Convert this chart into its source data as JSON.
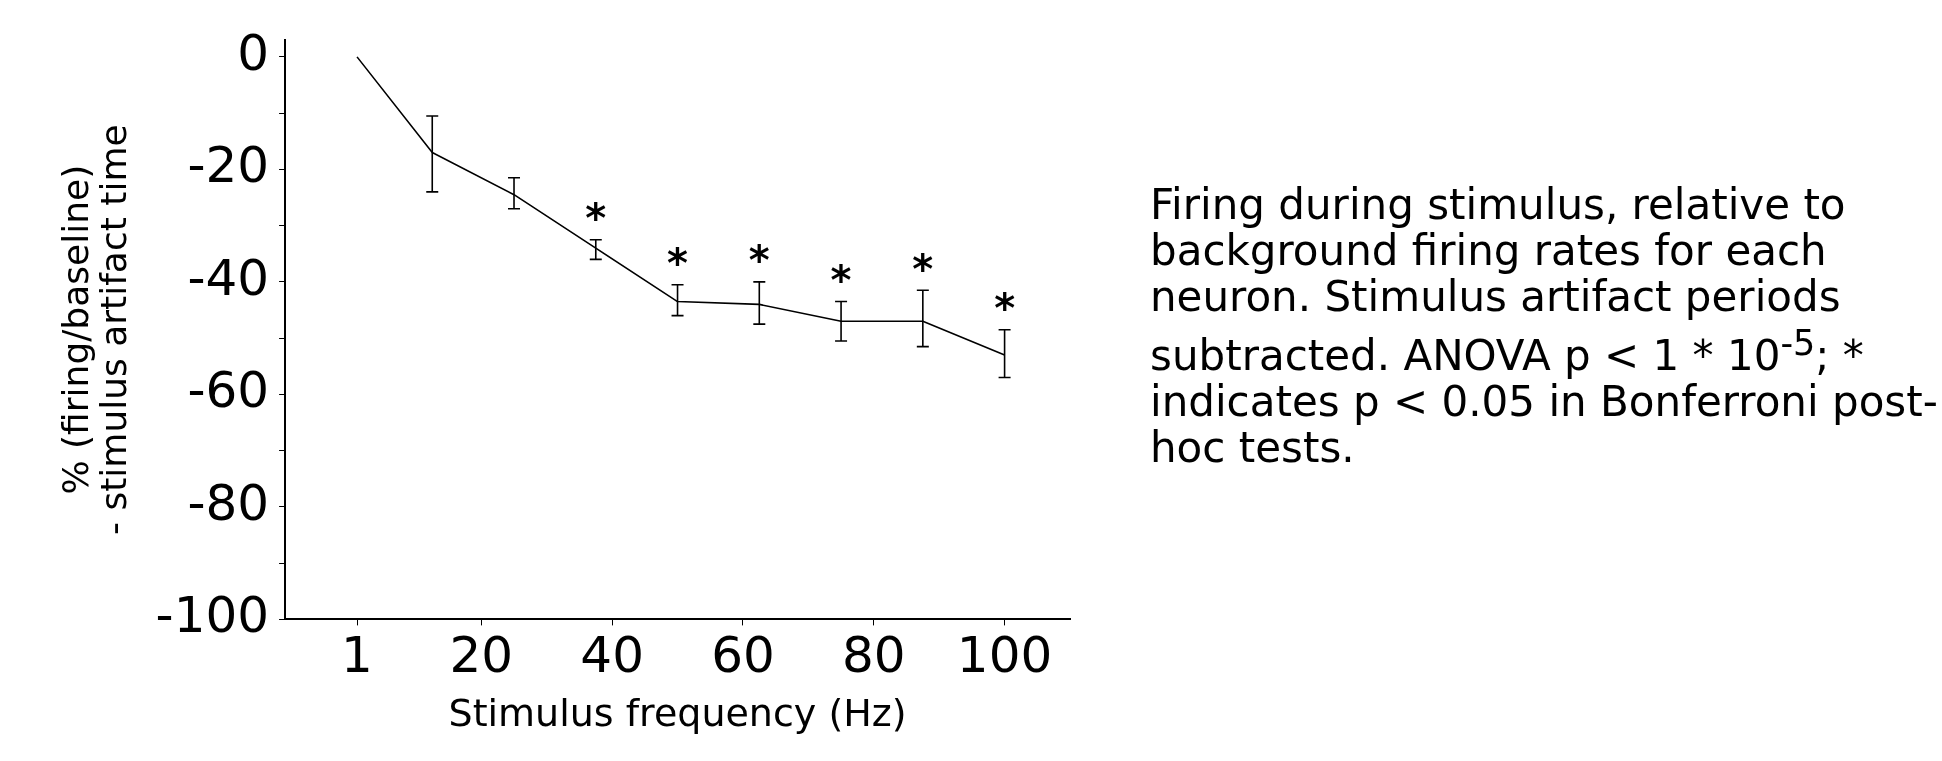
{
  "chart_data": {
    "type": "line",
    "xlabel": "Stimulus frequency (Hz)",
    "ylabel": "% (firing/baseline)\n- stimulus artifact time",
    "x": [
      1,
      12.5,
      25,
      37.5,
      50,
      62.5,
      75,
      87.5,
      100
    ],
    "series": [
      {
        "color": "#000000",
        "values": [
          0,
          -17,
          -24.5,
          -34,
          -43.5,
          -44,
          -47,
          -47,
          -53
        ],
        "errors": [
          null,
          [
            -24,
            -10.5
          ],
          [
            -27,
            -21.5
          ],
          [
            -36,
            -32.5
          ],
          [
            -46,
            -40.5
          ],
          [
            -47.5,
            -40
          ],
          [
            -50.5,
            -43.5
          ],
          [
            -51.5,
            -41.5
          ],
          [
            -57,
            -48.5
          ]
        ]
      }
    ],
    "xlim": [
      -10,
      110
    ],
    "xticks": [
      1,
      20,
      40,
      60,
      80,
      100
    ],
    "ylim": [
      -100,
      3
    ],
    "yticks": [
      -100,
      {
        "value": -90,
        "label": null
      },
      -80,
      {
        "value": -70,
        "label": null
      },
      -60,
      {
        "value": -50,
        "label": null
      },
      -40,
      {
        "value": -30,
        "label": null
      },
      -20,
      {
        "value": -10,
        "label": null
      },
      0
    ],
    "grid": false,
    "legend": false,
    "marker": "none",
    "line_style": "solid",
    "annotations": [
      {
        "text": "*",
        "x": 37.5,
        "y": -34
      },
      {
        "text": "*",
        "x": 50,
        "y": -43.5
      },
      {
        "text": "*",
        "x": 62.5,
        "y": -44
      },
      {
        "text": "*",
        "x": 75,
        "y": -47
      },
      {
        "text": "*",
        "x": 87.5,
        "y": -47
      },
      {
        "text": "*",
        "x": 100,
        "y": -53
      },
      "Firing during stimulus, relative to background firing rates for each neuron. Stimulus artifact periods subtracted. ANOVA  p < 1 * 10$^{-5}$; * indicates p < 0.05 in Bonferroni post-hoc tests."
    ]
  }
}
